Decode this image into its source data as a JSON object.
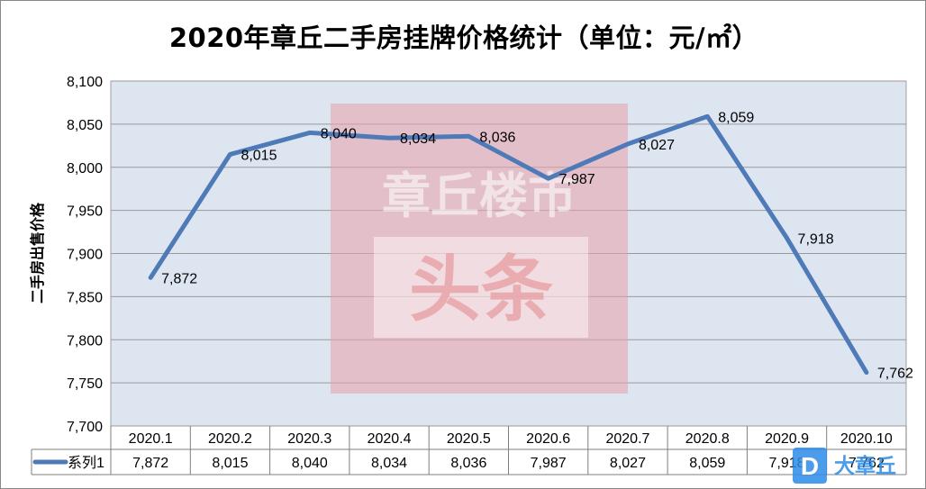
{
  "chart_data": {
    "type": "line",
    "title": "2020年章丘二手房挂牌价格统计（单位：元/㎡）",
    "ylabel": "二手房出售价格",
    "xlabel": "",
    "categories": [
      "2020.1",
      "2020.2",
      "2020.3",
      "2020.4",
      "2020.5",
      "2020.6",
      "2020.7",
      "2020.8",
      "2020.9",
      "2020.10"
    ],
    "series": [
      {
        "name": "系列1",
        "values": [
          7872,
          8015,
          8040,
          8034,
          8036,
          7987,
          8027,
          8059,
          7918,
          7762
        ]
      }
    ],
    "ylim": [
      7700,
      8100
    ],
    "yticks": [
      7700,
      7750,
      7800,
      7850,
      7900,
      7950,
      8000,
      8050,
      8100
    ],
    "ytick_labels": [
      "7,700",
      "7,750",
      "7,800",
      "7,850",
      "7,900",
      "7,950",
      "8,000",
      "8,050",
      "8,100"
    ],
    "value_labels": [
      "7,872",
      "8,015",
      "8,040",
      "8,034",
      "8,036",
      "7,987",
      "8,027",
      "8,059",
      "7,918",
      "7,762"
    ],
    "grid": true,
    "legend": "data-table-left",
    "line_color": "#4f7ab8",
    "plot_background": "#dde5f1"
  },
  "watermark": {
    "line1": "章丘楼市",
    "line2": "头条",
    "color": "#e8a3a8"
  },
  "logo": {
    "letter": "D",
    "text": "大章丘",
    "color": "#2b8ce8"
  }
}
